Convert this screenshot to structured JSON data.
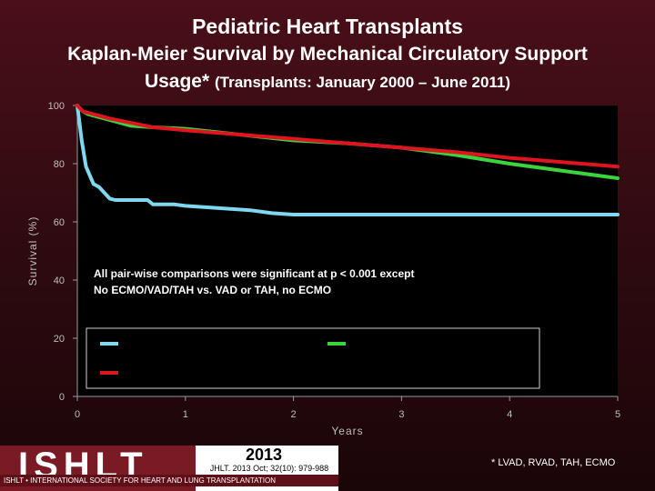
{
  "header": {
    "title": "Pediatric Heart Transplants",
    "subtitle_line1": "Kaplan-Meier Survival by Mechanical Circulatory Support",
    "subtitle_line2_main": "Usage*",
    "subtitle_line2_small": "(Transplants: January 2000 – June 2011)"
  },
  "chart_data": {
    "type": "line",
    "title": "Kaplan-Meier Survival by Mechanical Circulatory Support Usage*",
    "xlabel": "Years",
    "ylabel": "Survival (%)",
    "xlim": [
      0,
      5
    ],
    "ylim": [
      0,
      100
    ],
    "x_ticks": [
      "0",
      "1",
      "2",
      "3",
      "4",
      "5"
    ],
    "y_ticks": [
      "0",
      "20",
      "40",
      "60",
      "80",
      "100"
    ],
    "annotation_line1": "All pair-wise comparisons were significant at p < 0.001 except",
    "annotation_line2": "No ECMO/VAD/TAH vs. VAD or TAH, no ECMO",
    "series": [
      {
        "name": "",
        "color": "#7fd8f0",
        "x": [
          0,
          0.04,
          0.08,
          0.15,
          0.2,
          0.25,
          0.3,
          0.35,
          0.45,
          0.5,
          0.65,
          0.7,
          0.9,
          1.0,
          1.2,
          1.4,
          1.6,
          1.8,
          2.0,
          2.5,
          3.0,
          3.5,
          4.0,
          4.5,
          5.0
        ],
        "y": [
          100,
          88,
          79,
          73,
          72,
          70,
          68,
          67.5,
          67.5,
          67.5,
          67.5,
          66,
          66,
          65.5,
          65,
          64.5,
          64,
          63,
          62.5,
          62.5,
          62.5,
          62.5,
          62.5,
          62.5,
          62.5
        ]
      },
      {
        "name": "",
        "color": "#3cd43c",
        "x": [
          0,
          0.05,
          0.1,
          0.2,
          0.3,
          0.5,
          0.7,
          1.0,
          1.5,
          2.0,
          2.5,
          3.0,
          3.5,
          4.0,
          4.5,
          5.0
        ],
        "y": [
          100,
          98,
          97,
          96,
          95,
          93,
          92.5,
          92,
          90,
          88,
          87,
          85.5,
          83,
          80,
          77.5,
          75
        ]
      },
      {
        "name": "",
        "color": "#e0141e",
        "x": [
          0,
          0.05,
          0.1,
          0.2,
          0.3,
          0.5,
          0.7,
          1.0,
          1.5,
          2.0,
          2.5,
          3.0,
          3.5,
          4.0,
          4.5,
          5.0
        ],
        "y": [
          100,
          98,
          97.5,
          96.5,
          95.5,
          94,
          92.5,
          91.5,
          90,
          88.5,
          87,
          85.5,
          84,
          82,
          80.5,
          79
        ]
      }
    ]
  },
  "footer": {
    "logo_text": "ISHLT",
    "logo_subtext": "ISHLT • INTERNATIONAL SOCIETY FOR HEART AND LUNG TRANSPLANTATION",
    "year": "2013",
    "citation": "JHLT. 2013 Oct; 32(10): 979-988",
    "footnote": "* LVAD, RVAD, TAH, ECMO"
  }
}
